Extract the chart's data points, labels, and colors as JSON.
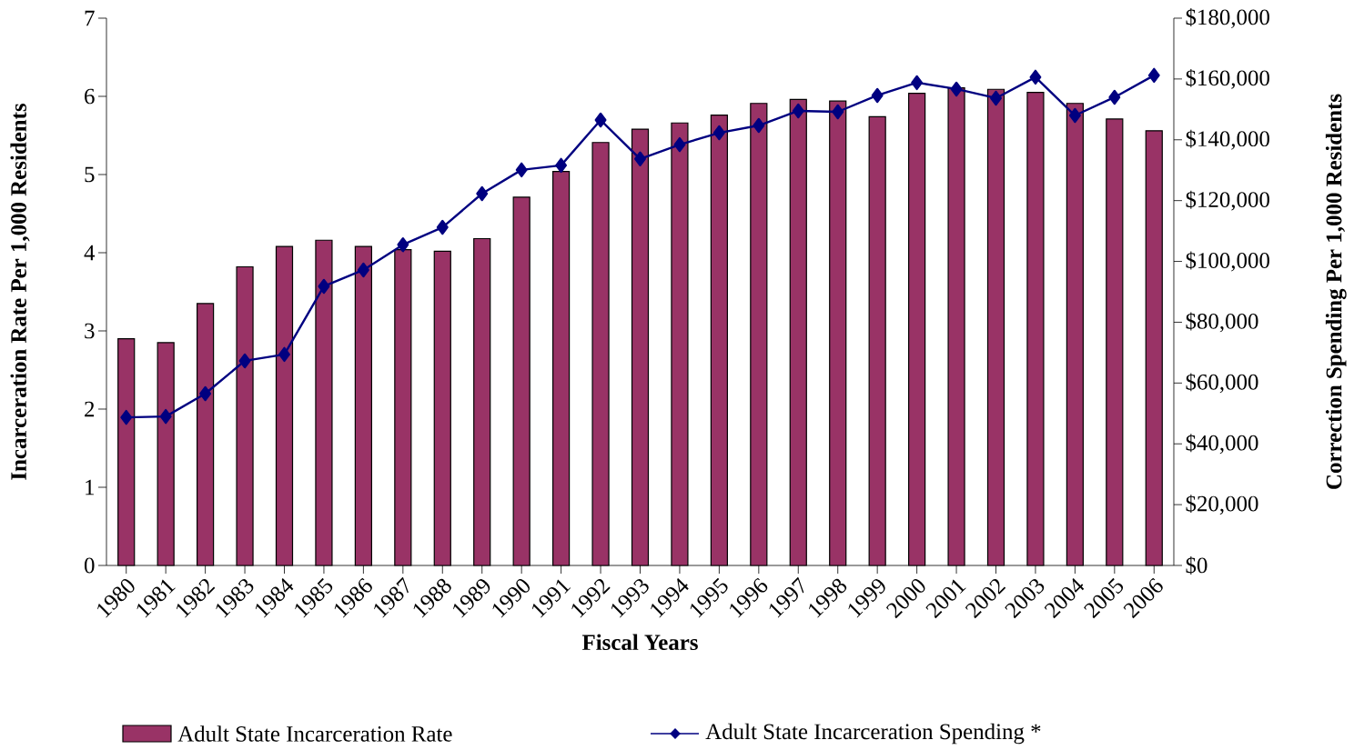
{
  "chart_data": {
    "type": "bar",
    "categories": [
      "1980",
      "1981",
      "1982",
      "1983",
      "1984",
      "1985",
      "1986",
      "1987",
      "1988",
      "1989",
      "1990",
      "1991",
      "1992",
      "1993",
      "1994",
      "1995",
      "1996",
      "1997",
      "1998",
      "1999",
      "2000",
      "2001",
      "2002",
      "2003",
      "2004",
      "2005",
      "2006"
    ],
    "series": [
      {
        "name": "Adult State Incarceration Rate",
        "type": "bar",
        "color": "#993366",
        "values": [
          2.9,
          2.85,
          3.35,
          3.82,
          4.08,
          4.16,
          4.08,
          4.04,
          4.02,
          4.18,
          4.71,
          5.04,
          5.41,
          5.58,
          5.66,
          5.76,
          5.91,
          5.96,
          5.94,
          5.74,
          6.04,
          6.11,
          6.09,
          6.05,
          5.91,
          5.71,
          5.56
        ]
      },
      {
        "name": "Adult State Incarceration Spending *",
        "type": "line",
        "axis": "y2",
        "color": "#000080",
        "values": [
          48700,
          49000,
          56500,
          67300,
          69400,
          91800,
          97200,
          105500,
          111200,
          122300,
          130100,
          131600,
          146500,
          133700,
          138400,
          142300,
          144700,
          149500,
          149200,
          154600,
          158800,
          156700,
          153700,
          160600,
          148000,
          154000,
          161200
        ]
      }
    ],
    "xlabel": "Fiscal Years",
    "ylabel": "Incarceration Rate Per 1,000 Residents",
    "y2label": "Correction Spending Per 1,000 Residents",
    "ylim": [
      0,
      7
    ],
    "yticks": [
      0,
      1,
      2,
      3,
      4,
      5,
      6,
      7
    ],
    "y2lim": [
      0,
      180000
    ],
    "y2ticks": [
      {
        "value": 0,
        "label": "$0"
      },
      {
        "value": 20000,
        "label": "$20,000"
      },
      {
        "value": 40000,
        "label": "$40,000"
      },
      {
        "value": 60000,
        "label": "$60,000"
      },
      {
        "value": 80000,
        "label": "$80,000"
      },
      {
        "value": 100000,
        "label": "$100,000"
      },
      {
        "value": 120000,
        "label": "$120,000"
      },
      {
        "value": 140000,
        "label": "$140,000"
      },
      {
        "value": 160000,
        "label": "$160,000"
      },
      {
        "value": 180000,
        "label": "$180,000"
      }
    ],
    "marker": "diamond",
    "legend": "bottom",
    "grid": false
  }
}
